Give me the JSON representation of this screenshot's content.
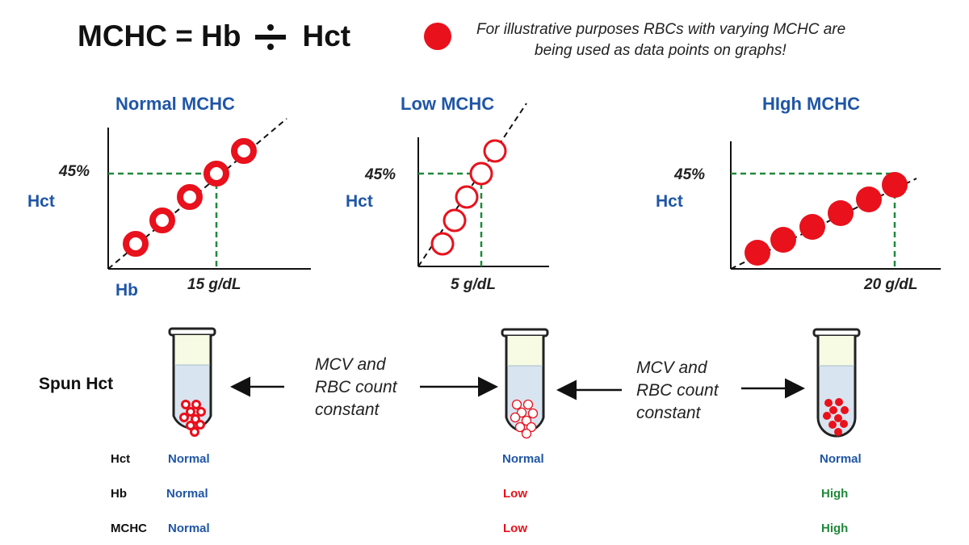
{
  "formula": {
    "left": "MCHC = Hb",
    "right": "Hct"
  },
  "note": {
    "line1": "For illustrative purposes RBCs with varying MCHC are",
    "line2": "being used as data points on graphs!"
  },
  "graphs": [
    {
      "title": "Normal MCHC",
      "ylabel": "Hct",
      "xlabel": "Hb",
      "hct_mark": "45%",
      "hb_mark": "15 g/dL"
    },
    {
      "title": "Low MCHC",
      "ylabel": "Hct",
      "hct_mark": "45%",
      "hb_mark": "5 g/dL"
    },
    {
      "title": "HIgh MCHC",
      "ylabel": "Hct",
      "hct_mark": "45%",
      "hb_mark": "20 g/dL"
    }
  ],
  "spun_label": "Spun Hct",
  "middle_texts": [
    [
      "MCV and",
      "RBC count",
      "constant"
    ],
    [
      "MCV and",
      "RBC count",
      "constant"
    ]
  ],
  "table": {
    "rows": [
      {
        "label": "Hct",
        "values": [
          "Normal",
          "Normal",
          "Normal"
        ]
      },
      {
        "label": "Hb",
        "values": [
          "Normal",
          "Low",
          "High"
        ]
      },
      {
        "label": "MCHC",
        "values": [
          "Normal",
          "Low",
          "High"
        ]
      }
    ]
  },
  "colors": {
    "rbc": "#e8111c",
    "title_blue": "#1f56a6",
    "dashed_green": "#1f8a3a",
    "low_red": "#e8111c",
    "high_green": "#1f8a3a"
  }
}
